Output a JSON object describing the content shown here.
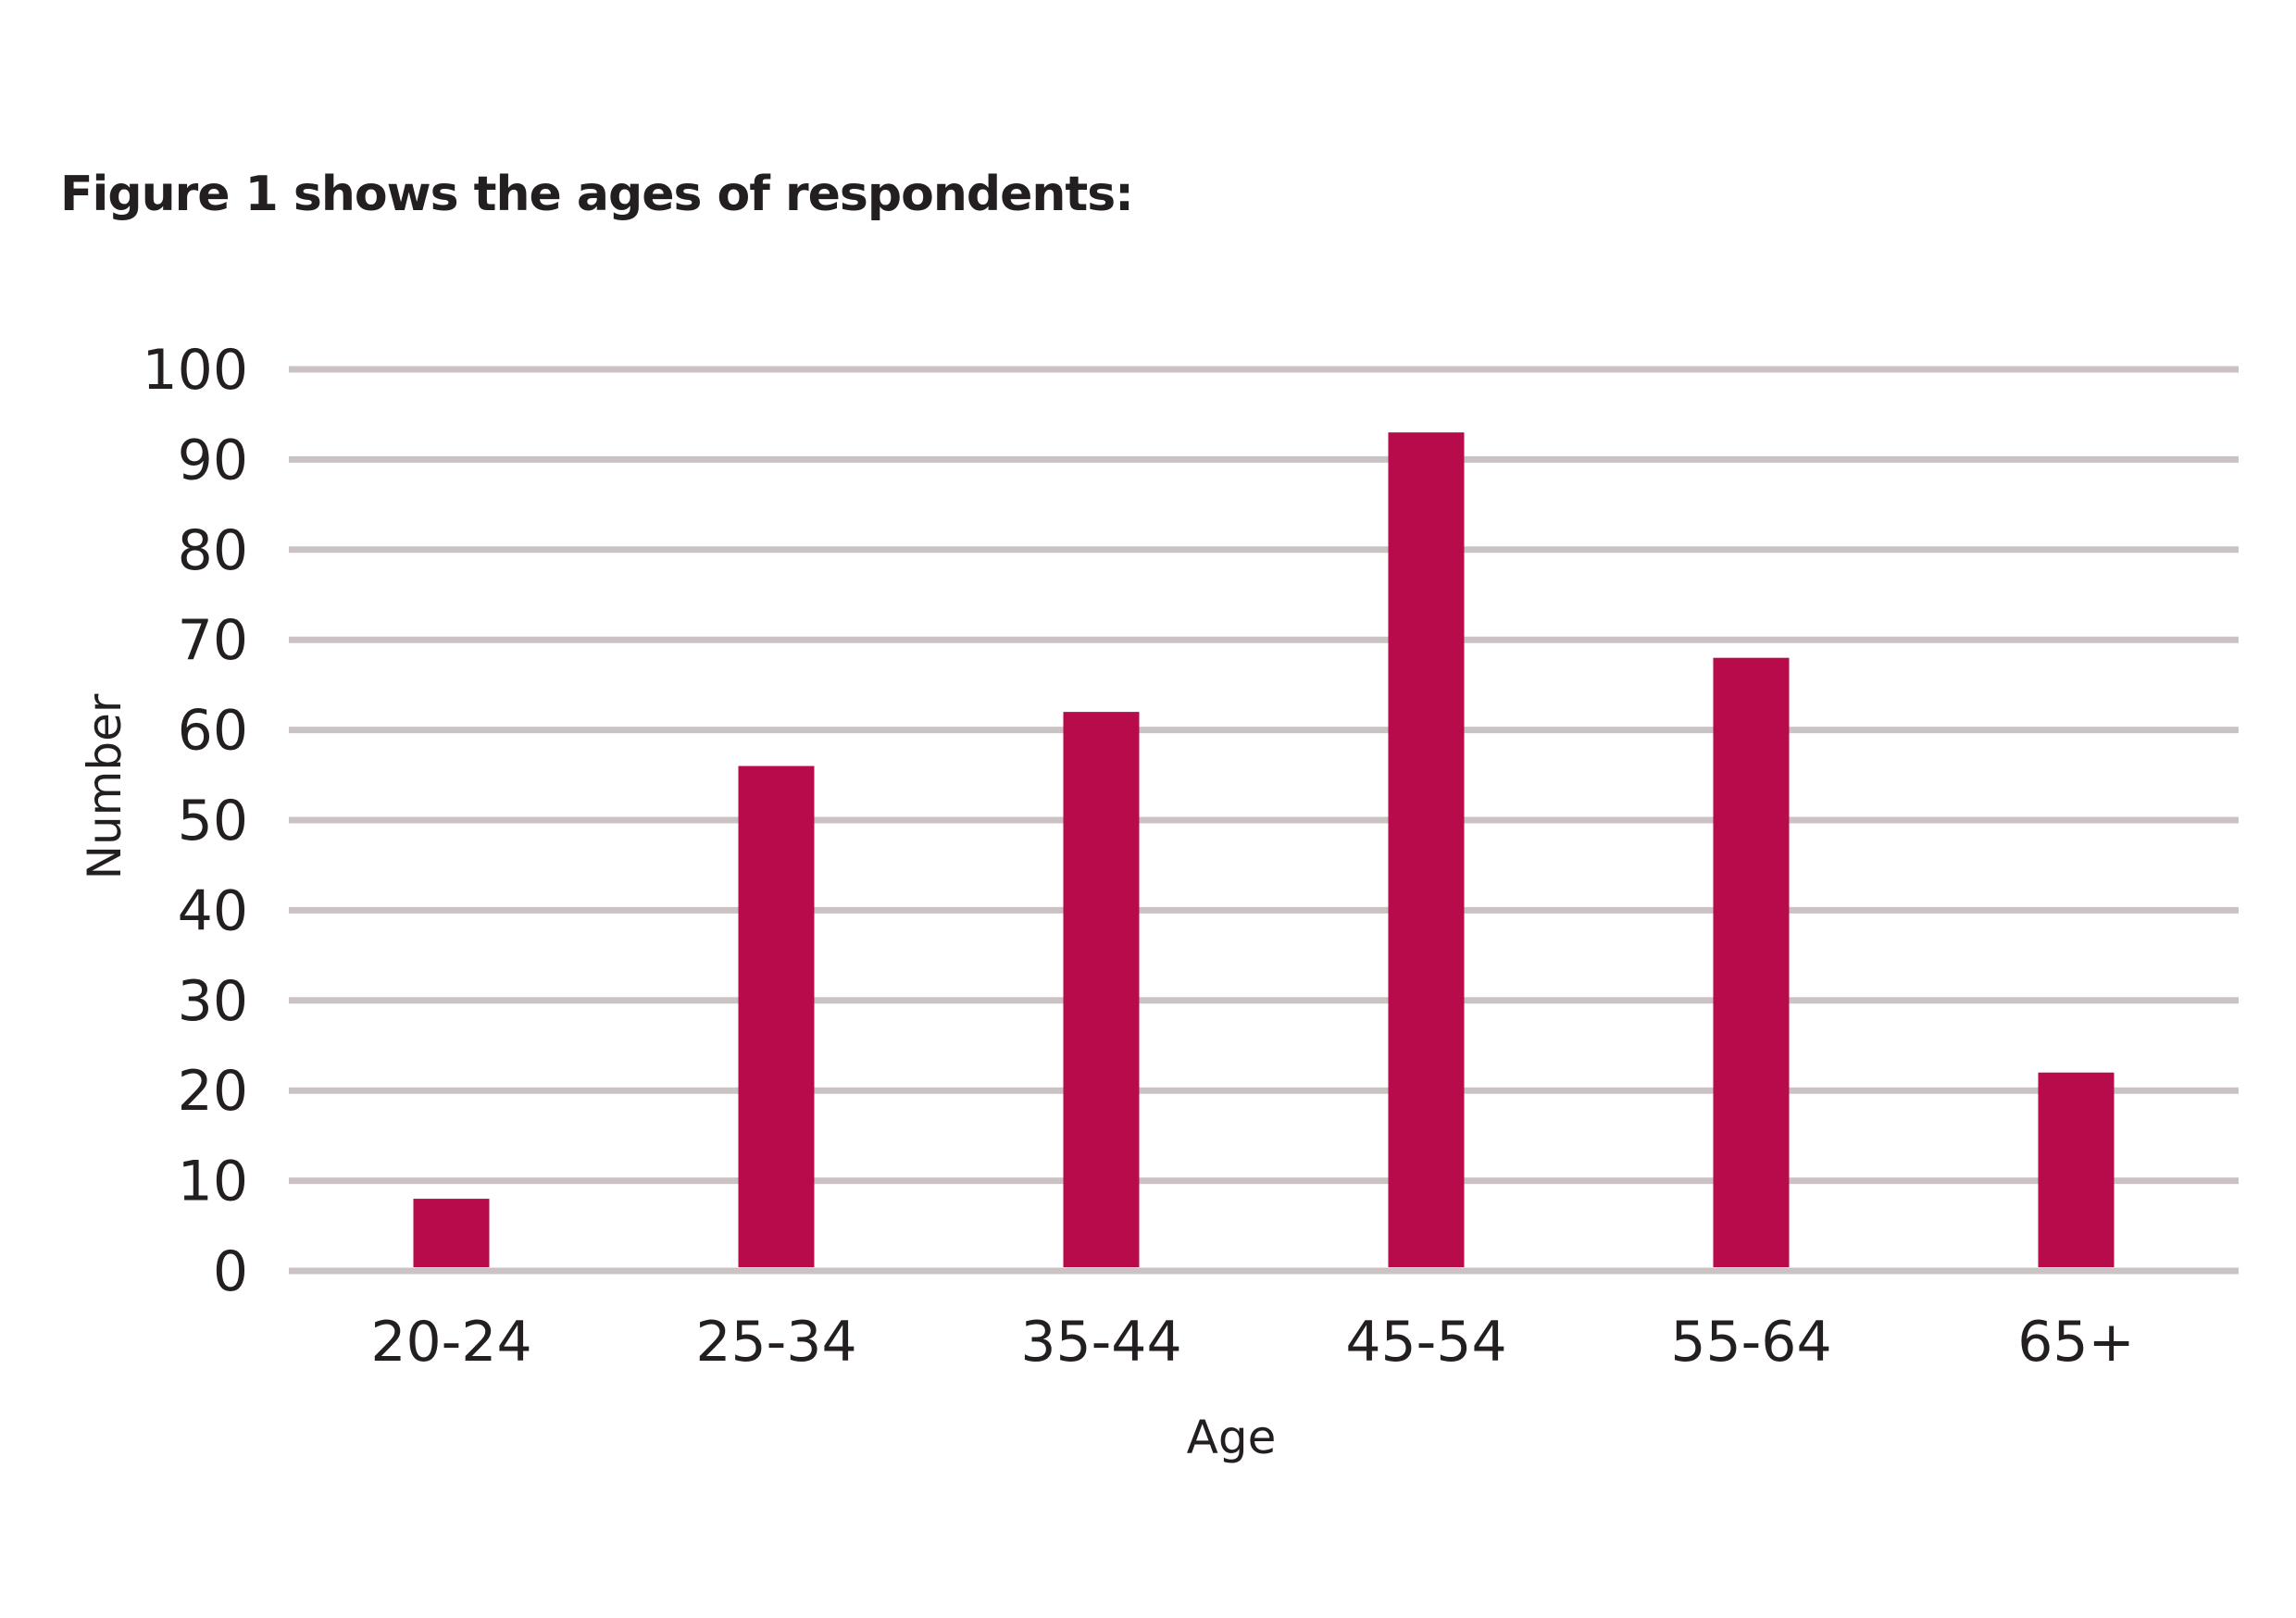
{
  "title": "Figure 1 shows the ages of respondents:",
  "colors": {
    "bar": "#b80b4b",
    "grid": "#cbc3c3",
    "text": "#231f20",
    "background": "#ffffff"
  },
  "chart_data": {
    "type": "bar",
    "title": "",
    "xlabel": "Age",
    "ylabel": "Number",
    "categories": [
      "20-24",
      "25-34",
      "35-44",
      "45-54",
      "55-64",
      "65+"
    ],
    "values": [
      8,
      56,
      62,
      93,
      68,
      22
    ],
    "ylim": [
      0,
      100
    ],
    "yticks": [
      0,
      10,
      20,
      30,
      40,
      50,
      60,
      70,
      80,
      90,
      100
    ],
    "grid": true,
    "legend": "none"
  }
}
